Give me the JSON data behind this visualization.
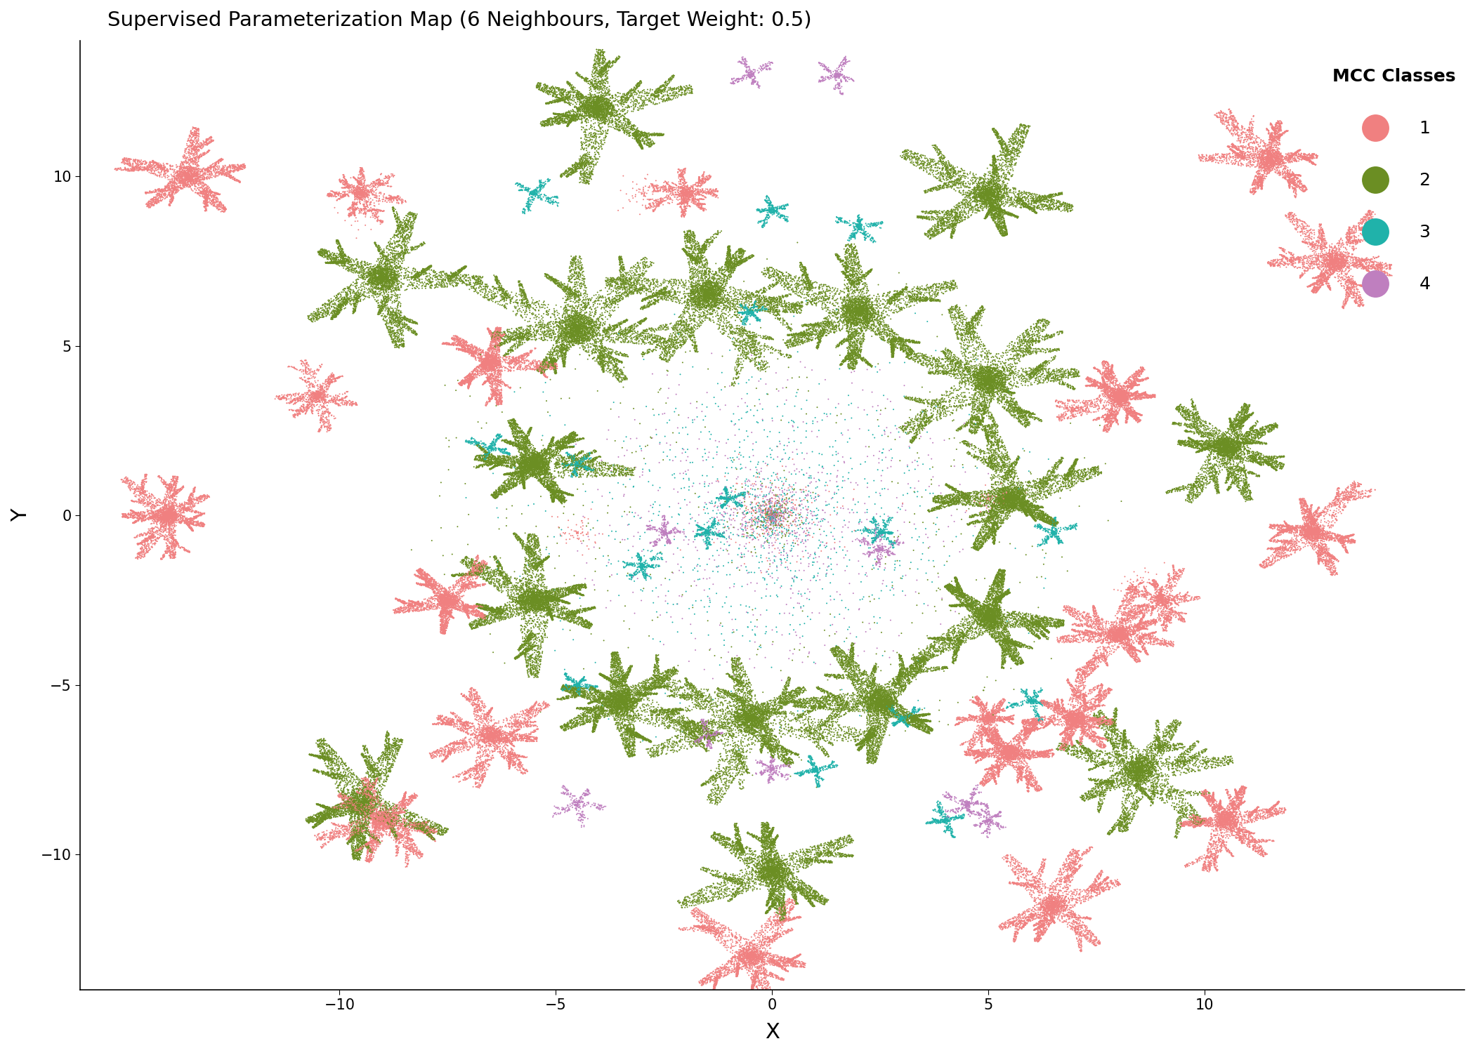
{
  "title": "Supervised Parameterization Map (6 Neighbours, Target Weight: 0.5)",
  "xlabel": "X",
  "ylabel": "Y",
  "xlim": [
    -16,
    16
  ],
  "ylim": [
    -14,
    14
  ],
  "colors": {
    "1": "#F08080",
    "2": "#6B8E23",
    "3": "#20B2AA",
    "4": "#BF7FBF"
  },
  "legend_title": "MCC Classes",
  "legend_labels": [
    "1",
    "2",
    "3",
    "4"
  ],
  "background": "#FFFFFF",
  "point_size": 2,
  "alpha": 1.0,
  "figsize": [
    21.0,
    15.0
  ],
  "dpi": 100
}
